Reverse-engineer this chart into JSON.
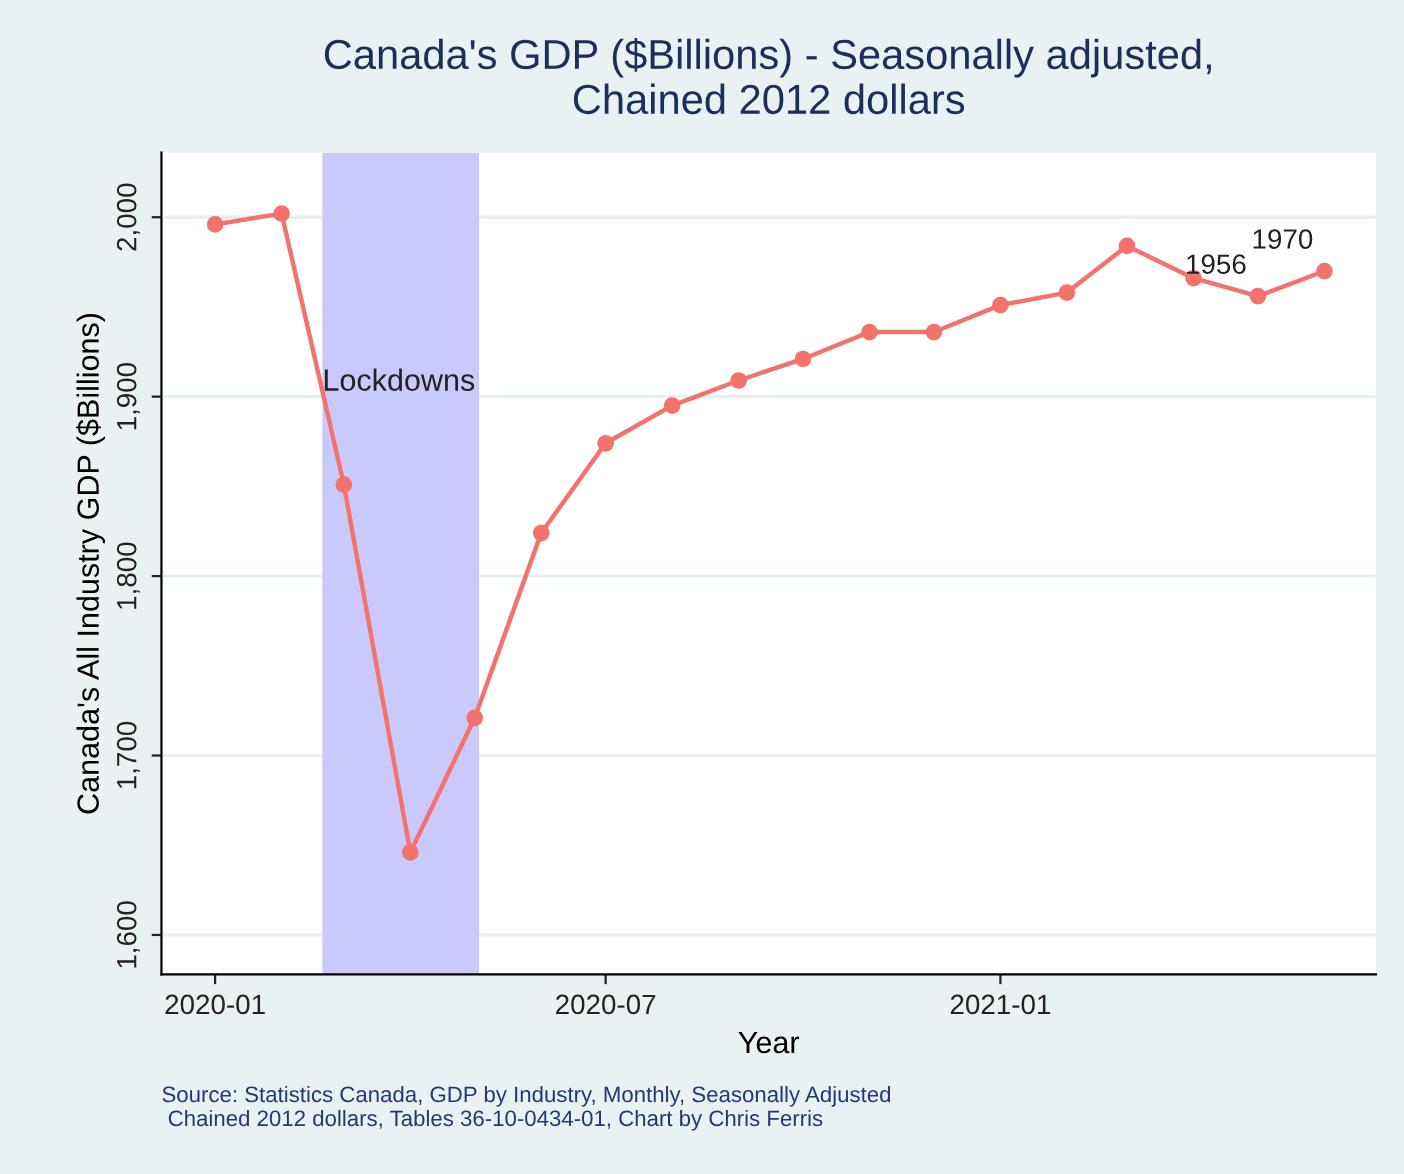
{
  "chart_data": {
    "type": "line",
    "title": "Canada's GDP ($Billions) - Seasonally adjusted,\nChained 2012 dollars",
    "xlabel": "Year",
    "ylabel": "Canada's All Industry GDP ($Billions)",
    "x": [
      "2020-01",
      "2020-02",
      "2020-03",
      "2020-04",
      "2020-05",
      "2020-06",
      "2020-07",
      "2020-08",
      "2020-09",
      "2020-10",
      "2020-11",
      "2020-12",
      "2021-01",
      "2021-02",
      "2021-03",
      "2021-04",
      "2021-05",
      "2021-06"
    ],
    "series": [
      {
        "color": "#f4726c",
        "values": [
          1996,
          2002,
          1851,
          1646,
          1721,
          1824,
          1874,
          1895,
          1909,
          1921,
          1936,
          1936,
          1951,
          1958,
          1984,
          1966,
          1956,
          1970
        ],
        "value_labels": [
          null,
          null,
          null,
          null,
          null,
          null,
          null,
          null,
          null,
          null,
          null,
          null,
          null,
          null,
          null,
          null,
          "1956",
          "1970"
        ]
      }
    ],
    "xlim": [
      "2019-12-07",
      "2021-06-25"
    ],
    "xticks": [
      {
        "value": "2020-01",
        "label": "2020-01"
      },
      {
        "value": "2020-07",
        "label": "2020-07"
      },
      {
        "value": "2021-01",
        "label": "2021-01"
      }
    ],
    "ylim": [
      1578,
      2036
    ],
    "yticks": [
      {
        "value": 1600,
        "label": "1,600"
      },
      {
        "value": 1700,
        "label": "1,700"
      },
      {
        "value": 1800,
        "label": "1,800"
      },
      {
        "value": 1900,
        "label": "1,900"
      },
      {
        "value": 2000,
        "label": "2,000"
      }
    ],
    "bands": [
      {
        "axis": "x",
        "from": "2020-02-20",
        "to": "2020-05-03",
        "label": "Lockdowns",
        "color": "#c9c9fb"
      }
    ],
    "grid": "y",
    "marker": "circle",
    "line_style": "solid",
    "legend": false,
    "annotations": [
      "Source: Statistics Canada, GDP by Industry, Monthly, Seasonally Adjusted\n Chained 2012 dollars, Tables 36-10-0434-01, Chart by Chris Ferris"
    ]
  }
}
